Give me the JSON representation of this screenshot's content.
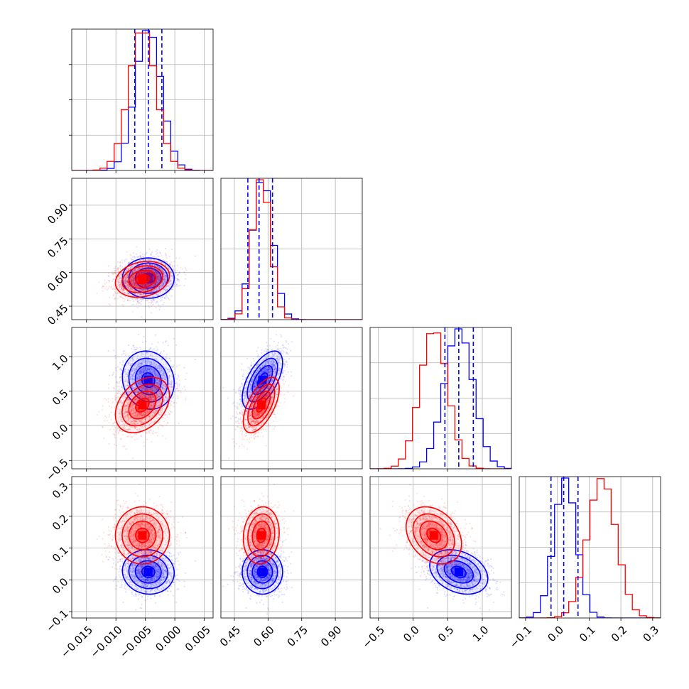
{
  "chart_data": {
    "type": "corner",
    "title": "",
    "parameters": [
      "",
      "",
      "",
      ""
    ],
    "grid": true,
    "colors": {
      "first": "#0000ff",
      "second": "#ff0000",
      "quantile_lines": "#0000ff"
    },
    "series": [
      {
        "color": "#0000ff",
        "mean": [
          -0.0045,
          0.575,
          0.66,
          0.025
        ],
        "std": [
          0.0022,
          0.045,
          0.21,
          0.035
        ],
        "corr": [
          [
            1,
            0,
            -0.1,
            -0.05
          ],
          [
            0,
            1,
            0.6,
            0
          ],
          [
            -0.1,
            0.6,
            1,
            -0.3
          ],
          [
            -0.05,
            0,
            -0.3,
            1
          ]
        ]
      },
      {
        "color": "#ff0000",
        "mean": [
          -0.0055,
          0.57,
          0.3,
          0.14
        ],
        "std": [
          0.0023,
          0.04,
          0.2,
          0.045
        ],
        "corr": [
          [
            1,
            0.2,
            0.35,
            0
          ],
          [
            0.2,
            1,
            0.6,
            0.1
          ],
          [
            0.35,
            0.6,
            1,
            -0.3
          ],
          [
            0,
            0.1,
            -0.3,
            1
          ]
        ]
      }
    ],
    "quantiles": [
      [
        -0.0068,
        -0.0045,
        -0.0022
      ],
      [
        0.51,
        0.56,
        0.62
      ],
      [
        0.46,
        0.66,
        0.87
      ],
      [
        -0.02,
        0.02,
        0.065
      ]
    ],
    "ranges": [
      [
        -0.0175,
        0.0065
      ],
      [
        0.39,
        1.02
      ],
      [
        -0.62,
        1.42
      ],
      [
        -0.12,
        0.325
      ]
    ],
    "ticks": [
      {
        "values": [
          -0.015,
          -0.01,
          -0.005,
          0.0,
          0.005
        ],
        "labels": [
          "−0.015",
          "−0.010",
          "−0.005",
          "0.000",
          "0.005"
        ]
      },
      {
        "values": [
          0.45,
          0.6,
          0.75,
          0.9
        ],
        "labels": [
          "0.45",
          "0.60",
          "0.75",
          "0.90"
        ]
      },
      {
        "values": [
          -0.5,
          0.0,
          0.5,
          1.0
        ],
        "labels": [
          "−0.5",
          "0.0",
          "0.5",
          "1.0"
        ]
      },
      {
        "values": [
          -0.1,
          0.0,
          0.1,
          0.2,
          0.3
        ],
        "labels": [
          "−0.1",
          "0.0",
          "0.1",
          "0.2",
          "0.3"
        ]
      }
    ]
  }
}
